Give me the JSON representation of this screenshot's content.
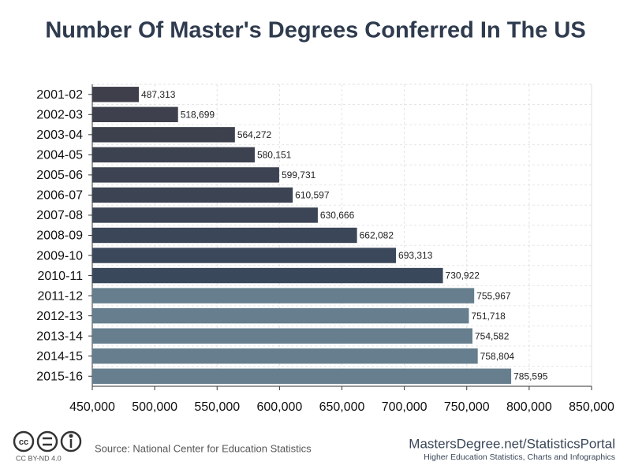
{
  "chart_data": {
    "type": "bar",
    "orientation": "horizontal",
    "title": "Number Of Master's Degrees Conferred In The US",
    "categories": [
      "2001-02",
      "2002-03",
      "2003-04",
      "2004-05",
      "2005-06",
      "2006-07",
      "2007-08",
      "2008-09",
      "2009-10",
      "2010-11",
      "2011-12",
      "2012-13",
      "2013-14",
      "2014-15",
      "2015-16"
    ],
    "values": [
      487313,
      518699,
      564272,
      580151,
      599731,
      610597,
      630666,
      662082,
      693313,
      730922,
      755967,
      751718,
      754582,
      758804,
      785595
    ],
    "value_labels": [
      "487,313",
      "518,699",
      "564,272",
      "580,151",
      "599,731",
      "610,597",
      "630,666",
      "662,082",
      "693,313",
      "730,922",
      "755,967",
      "751,718",
      "754,582",
      "758,804",
      "785,595"
    ],
    "colors": [
      "#3e3f4b",
      "#3e404d",
      "#3d414e",
      "#3d4250",
      "#3d4352",
      "#3c4454",
      "#3c4556",
      "#3b4658",
      "#3b475a",
      "#3a485c",
      "#667e8d",
      "#667e8d",
      "#667e8d",
      "#667e8d",
      "#667e8d"
    ],
    "xlim": [
      450000,
      850000
    ],
    "xticks": [
      {
        "value": 450000,
        "label": "450,000"
      },
      {
        "value": 500000,
        "label": "500,000"
      },
      {
        "value": 550000,
        "label": "550,000"
      },
      {
        "value": 600000,
        "label": "600,000"
      },
      {
        "value": 650000,
        "label": "650,000"
      },
      {
        "value": 700000,
        "label": "700,000"
      },
      {
        "value": 750000,
        "label": "750,000"
      },
      {
        "value": 800000,
        "label": "800,000"
      },
      {
        "value": 850000,
        "label": "850,000"
      }
    ],
    "grid": true,
    "source": "Source: National Center for Education Statistics",
    "license": "CC BY-ND 4.0",
    "brand": "MastersDegree.net/StatisticsPortal",
    "brand_tagline": "Higher Education Statistics, Charts and Infographics"
  }
}
